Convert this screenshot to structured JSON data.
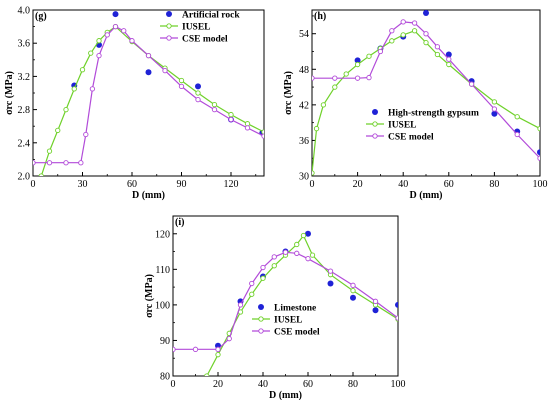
{
  "colors": {
    "axis": "#000000",
    "iusel": "#6fd12a",
    "cse": "#b24bd9",
    "data_point": "#1f22d6"
  },
  "chart_data": [
    {
      "id": "g",
      "type": "line",
      "panel_label": "(g)",
      "xlabel": "D (mm)",
      "ylabel": "σrc (MPa)",
      "xlim": [
        0,
        140
      ],
      "ylim": [
        2.0,
        4.0
      ],
      "xticks": [
        0,
        30,
        60,
        90,
        120
      ],
      "xtick_labels": [
        "0",
        "30",
        "60",
        "90",
        "120"
      ],
      "yticks": [
        2.0,
        2.4,
        2.8,
        3.2,
        3.6,
        4.0
      ],
      "ytick_labels": [
        "2.0",
        "2.4",
        "2.8",
        "3.2",
        "3.6",
        "4.0"
      ],
      "legend_position": "top-right",
      "series": [
        {
          "name": "Artificial rock",
          "kind": "scatter",
          "color": "#1f22d6",
          "points": [
            [
              25,
              3.09
            ],
            [
              40,
              3.58
            ],
            [
              50,
              3.95
            ],
            [
              70,
              3.25
            ],
            [
              100,
              3.08
            ],
            [
              120,
              2.68
            ],
            [
              139,
              2.52
            ]
          ]
        },
        {
          "name": "IUSEL",
          "kind": "line",
          "color": "#6fd12a",
          "points": [
            [
              5,
              2.0
            ],
            [
              10,
              2.3
            ],
            [
              15,
              2.55
            ],
            [
              20,
              2.8
            ],
            [
              25,
              3.05
            ],
            [
              30,
              3.28
            ],
            [
              35,
              3.48
            ],
            [
              40,
              3.63
            ],
            [
              45,
              3.73
            ],
            [
              50,
              3.8
            ],
            [
              60,
              3.62
            ],
            [
              70,
              3.45
            ],
            [
              80,
              3.3
            ],
            [
              90,
              3.15
            ],
            [
              100,
              3.0
            ],
            [
              110,
              2.86
            ],
            [
              120,
              2.74
            ],
            [
              130,
              2.63
            ],
            [
              140,
              2.53
            ]
          ]
        },
        {
          "name": "CSE model",
          "kind": "line",
          "color": "#b24bd9",
          "points": [
            [
              0,
              2.16
            ],
            [
              10,
              2.16
            ],
            [
              20,
              2.16
            ],
            [
              29,
              2.16
            ],
            [
              32,
              2.5
            ],
            [
              36,
              3.05
            ],
            [
              40,
              3.45
            ],
            [
              45,
              3.7
            ],
            [
              50,
              3.8
            ],
            [
              55,
              3.75
            ],
            [
              60,
              3.63
            ],
            [
              70,
              3.45
            ],
            [
              80,
              3.27
            ],
            [
              90,
              3.08
            ],
            [
              100,
              2.92
            ],
            [
              110,
              2.8
            ],
            [
              120,
              2.68
            ],
            [
              130,
              2.58
            ],
            [
              140,
              2.48
            ]
          ]
        }
      ]
    },
    {
      "id": "h",
      "type": "line",
      "panel_label": "(h)",
      "xlabel": "D (mm)",
      "ylabel": "σrc (MPa)",
      "xlim": [
        0,
        100
      ],
      "ylim": [
        30,
        58
      ],
      "xticks": [
        0,
        20,
        40,
        60,
        80,
        100
      ],
      "xtick_labels": [
        "0",
        "20",
        "40",
        "60",
        "80",
        "100"
      ],
      "yticks": [
        30,
        36,
        42,
        48,
        54
      ],
      "ytick_labels": [
        "30",
        "36",
        "42",
        "48",
        "54"
      ],
      "legend_position": "bottom-right",
      "series": [
        {
          "name": "High-strength gypsum",
          "kind": "scatter",
          "color": "#1f22d6",
          "points": [
            [
              20,
              49.5
            ],
            [
              30,
              51.5
            ],
            [
              40,
              53.5
            ],
            [
              50,
              57.5
            ],
            [
              60,
              50.5
            ],
            [
              70,
              46.0
            ],
            [
              80,
              40.5
            ],
            [
              90,
              37.5
            ],
            [
              100,
              34.0
            ]
          ]
        },
        {
          "name": "IUSEL",
          "kind": "line",
          "color": "#6fd12a",
          "points": [
            [
              0,
              30.5
            ],
            [
              2,
              38.0
            ],
            [
              5,
              42.0
            ],
            [
              10,
              45.0
            ],
            [
              15,
              47.2
            ],
            [
              20,
              48.8
            ],
            [
              25,
              50.2
            ],
            [
              30,
              51.5
            ],
            [
              35,
              52.8
            ],
            [
              40,
              53.8
            ],
            [
              45,
              54.5
            ],
            [
              50,
              52.5
            ],
            [
              55,
              50.5
            ],
            [
              60,
              48.8
            ],
            [
              70,
              45.5
            ],
            [
              80,
              42.5
            ],
            [
              90,
              40.0
            ],
            [
              100,
              38.0
            ]
          ]
        },
        {
          "name": "CSE model",
          "kind": "line",
          "color": "#b24bd9",
          "points": [
            [
              0,
              46.5
            ],
            [
              10,
              46.5
            ],
            [
              20,
              46.5
            ],
            [
              25,
              46.6
            ],
            [
              30,
              51.0
            ],
            [
              35,
              54.5
            ],
            [
              40,
              56.0
            ],
            [
              45,
              55.8
            ],
            [
              50,
              54.0
            ],
            [
              55,
              51.8
            ],
            [
              60,
              49.7
            ],
            [
              70,
              45.5
            ],
            [
              80,
              41.3
            ],
            [
              90,
              37.0
            ],
            [
              100,
              33.0
            ]
          ]
        }
      ]
    },
    {
      "id": "i",
      "type": "line",
      "panel_label": "(i)",
      "xlabel": "D (mm)",
      "ylabel": "σrc (MPa)",
      "xlim": [
        0,
        100
      ],
      "ylim": [
        80,
        125
      ],
      "xticks": [
        0,
        20,
        40,
        60,
        80,
        100
      ],
      "xtick_labels": [
        "0",
        "20",
        "40",
        "60",
        "80",
        "100"
      ],
      "yticks": [
        80,
        90,
        100,
        110,
        120
      ],
      "ytick_labels": [
        "80",
        "90",
        "100",
        "110",
        "120"
      ],
      "legend_position": "bottom-left",
      "series": [
        {
          "name": "Limestone",
          "kind": "scatter",
          "color": "#1f22d6",
          "points": [
            [
              20,
              88.5
            ],
            [
              30,
              101.0
            ],
            [
              40,
              108.0
            ],
            [
              50,
              115.0
            ],
            [
              60,
              120.0
            ],
            [
              70,
              106.0
            ],
            [
              80,
              102.0
            ],
            [
              90,
              98.5
            ],
            [
              100,
              100.0
            ]
          ]
        },
        {
          "name": "IUSEL",
          "kind": "line",
          "color": "#6fd12a",
          "points": [
            [
              15,
              80.0
            ],
            [
              20,
              86.0
            ],
            [
              25,
              92.0
            ],
            [
              30,
              98.0
            ],
            [
              35,
              103.0
            ],
            [
              40,
              107.5
            ],
            [
              45,
              111.0
            ],
            [
              50,
              114.0
            ],
            [
              55,
              117.0
            ],
            [
              58,
              119.5
            ],
            [
              62,
              114.0
            ],
            [
              70,
              108.5
            ],
            [
              80,
              104.0
            ],
            [
              90,
              100.0
            ],
            [
              100,
              96.0
            ]
          ]
        },
        {
          "name": "CSE model",
          "kind": "line",
          "color": "#b24bd9",
          "points": [
            [
              0,
              87.5
            ],
            [
              10,
              87.5
            ],
            [
              20,
              87.5
            ],
            [
              25,
              90.5
            ],
            [
              30,
              100.0
            ],
            [
              35,
              106.0
            ],
            [
              40,
              110.5
            ],
            [
              45,
              113.5
            ],
            [
              50,
              114.8
            ],
            [
              55,
              114.5
            ],
            [
              60,
              113.0
            ],
            [
              70,
              109.5
            ],
            [
              80,
              105.5
            ],
            [
              90,
              101.0
            ],
            [
              100,
              96.3
            ]
          ]
        }
      ]
    }
  ]
}
